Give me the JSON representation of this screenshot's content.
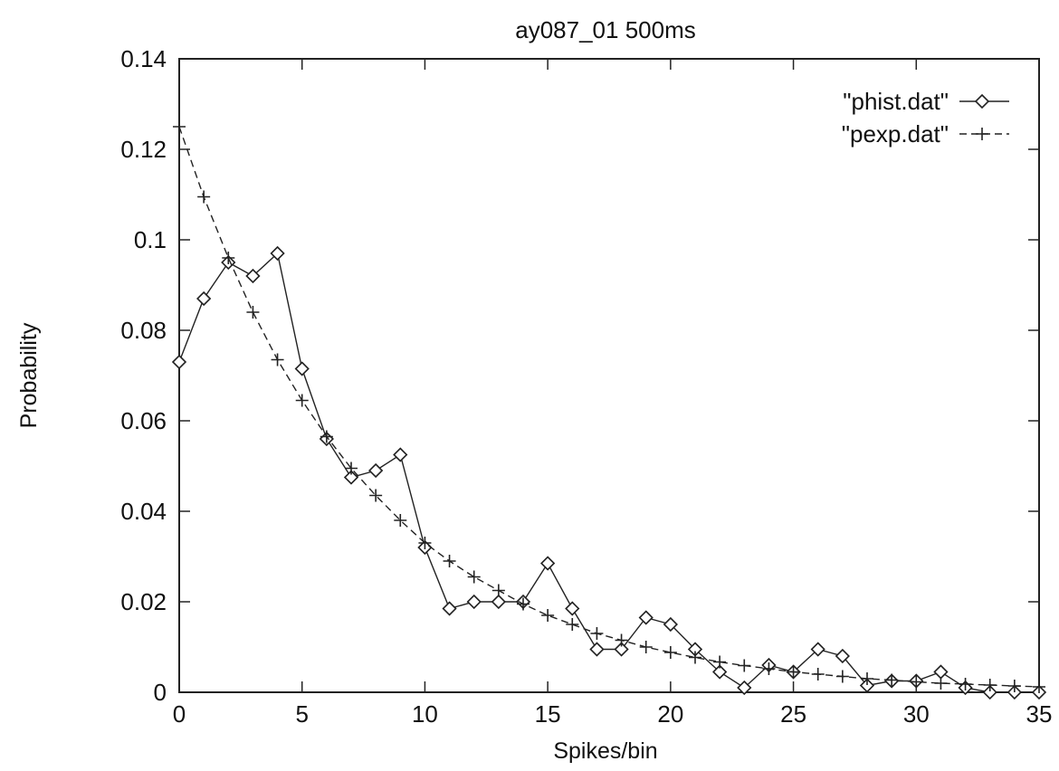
{
  "chart_data": {
    "type": "line",
    "title": "ay087_01 500ms",
    "xlabel": "Spikes/bin",
    "ylabel": "Probability",
    "xlim": [
      0,
      35
    ],
    "ylim": [
      0,
      0.14
    ],
    "x_ticks": [
      "0",
      "5",
      "10",
      "15",
      "20",
      "25",
      "30",
      "35"
    ],
    "y_ticks": [
      "0",
      "0.02",
      "0.04",
      "0.06",
      "0.08",
      "0.1",
      "0.12",
      "0.14"
    ],
    "grid": false,
    "legend_position": "top-right",
    "series": [
      {
        "name": "\"phist.dat\"",
        "marker": "diamond",
        "line_style": "solid",
        "x": [
          0,
          1,
          2,
          3,
          4,
          5,
          6,
          7,
          8,
          9,
          10,
          11,
          12,
          13,
          14,
          15,
          16,
          17,
          18,
          19,
          20,
          21,
          22,
          23,
          24,
          25,
          26,
          27,
          28,
          29,
          30,
          31,
          32,
          33,
          34,
          35
        ],
        "y": [
          0.073,
          0.087,
          0.095,
          0.092,
          0.097,
          0.0715,
          0.056,
          0.0475,
          0.049,
          0.0525,
          0.032,
          0.0185,
          0.02,
          0.02,
          0.02,
          0.0285,
          0.0185,
          0.0095,
          0.0095,
          0.0165,
          0.015,
          0.0095,
          0.0045,
          0.001,
          0.006,
          0.0045,
          0.0095,
          0.008,
          0.0015,
          0.0025,
          0.0025,
          0.0045,
          0.001,
          0.0,
          0.0,
          0.0
        ]
      },
      {
        "name": "\"pexp.dat\"",
        "marker": "plus",
        "line_style": "dashed",
        "x": [
          0,
          1,
          2,
          3,
          4,
          5,
          6,
          7,
          8,
          9,
          10,
          11,
          12,
          13,
          14,
          15,
          16,
          17,
          18,
          19,
          20,
          21,
          22,
          23,
          24,
          25,
          26,
          27,
          28,
          29,
          30,
          31,
          32,
          33,
          34,
          35
        ],
        "y": [
          0.125,
          0.1095,
          0.096,
          0.084,
          0.0735,
          0.0645,
          0.0565,
          0.0495,
          0.0435,
          0.038,
          0.033,
          0.029,
          0.0255,
          0.0225,
          0.0195,
          0.017,
          0.015,
          0.013,
          0.0115,
          0.01,
          0.0088,
          0.0077,
          0.0067,
          0.0059,
          0.0052,
          0.0045,
          0.004,
          0.0035,
          0.003,
          0.0027,
          0.0023,
          0.002,
          0.0018,
          0.0016,
          0.0014,
          0.0012
        ]
      }
    ]
  }
}
